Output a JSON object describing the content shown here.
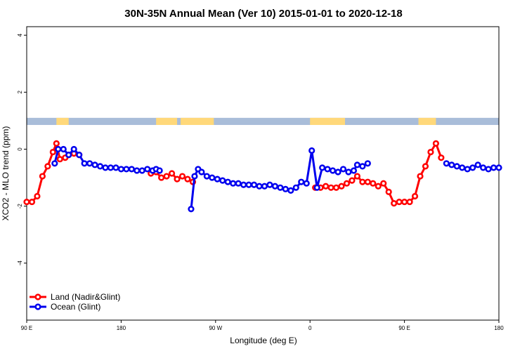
{
  "chart_data": {
    "type": "line",
    "title": "30N-35N Annual Mean (Ver 10)   2015-01-01 to 2020-12-18",
    "xlabel": "Longitude (deg E)",
    "ylabel": "XCO2 - MLO trend (ppm)",
    "xlim": [
      -90,
      180
    ],
    "ylim": [
      -6,
      4.3
    ],
    "x_ticks": [
      -90,
      -36,
      18,
      72,
      126,
      180
    ],
    "x_tick_labels": [
      "90 E",
      "180",
      "90 W",
      "0",
      "90 E",
      "180"
    ],
    "y_ticks": [
      4,
      2,
      0,
      -2,
      -4
    ],
    "y_tick_labels": [
      "4",
      "2",
      "0",
      "-2",
      "-4"
    ],
    "grid": false,
    "legend_position": "bottom-left",
    "colors": {
      "land": "#ff0000",
      "ocean": "#0000ee",
      "land_band": "#ffd87a",
      "ocean_band": "#a9bdd9"
    },
    "landmask_band": {
      "y_range": [
        0.85,
        1.1
      ],
      "land_x_ranges": [
        [
          -73,
          -66
        ],
        [
          -16,
          -4
        ],
        [
          -2,
          17
        ],
        [
          72,
          92
        ],
        [
          134,
          144
        ]
      ]
    },
    "series": [
      {
        "name": "Land (Nadir&Glint)",
        "color": "#ff0000",
        "x": [
          -90,
          -87,
          -84,
          -81,
          -78,
          -75,
          -73,
          -71,
          -68,
          -66,
          -63,
          -60,
          -19,
          -16,
          -13,
          -10,
          -7,
          -4,
          -1,
          2,
          5,
          75,
          78,
          81,
          84,
          87,
          90,
          93,
          96,
          99,
          102,
          105,
          108,
          111,
          114,
          117,
          120,
          123,
          126,
          129,
          132,
          135,
          138,
          141,
          144,
          147
        ],
        "y": [
          -1.85,
          -1.85,
          -1.65,
          -0.95,
          -0.6,
          -0.1,
          0.2,
          -0.35,
          -0.3,
          -0.2,
          -0.15,
          -0.2,
          -0.85,
          -0.8,
          -1.0,
          -0.95,
          -0.85,
          -1.05,
          -0.95,
          -1.05,
          -1.15,
          -1.35,
          -1.35,
          -1.3,
          -1.35,
          -1.35,
          -1.3,
          -1.2,
          -1.1,
          -0.95,
          -1.15,
          -1.15,
          -1.2,
          -1.3,
          -1.2,
          -1.5,
          -1.9,
          -1.85,
          -1.85,
          -1.85,
          -1.65,
          -0.95,
          -0.6,
          -0.1,
          0.2,
          -0.3
        ]
      },
      {
        "name": "Ocean (Glint)",
        "color": "#0000ee",
        "x": [
          -74,
          -72,
          -69,
          -66,
          -63,
          -60,
          -57,
          -54,
          -51,
          -48,
          -45,
          -42,
          -39,
          -36,
          -33,
          -30,
          -27,
          -24,
          -21,
          -18,
          -16,
          -14,
          4,
          6,
          8,
          10,
          13,
          16,
          19,
          22,
          25,
          28,
          31,
          34,
          37,
          40,
          43,
          46,
          49,
          52,
          55,
          58,
          61,
          64,
          67,
          70,
          73,
          76,
          79,
          82,
          85,
          88,
          91,
          94,
          97,
          99,
          102,
          105,
          150,
          153,
          156,
          159,
          162,
          165,
          168,
          171,
          174,
          177,
          180
        ],
        "y": [
          -0.5,
          0.0,
          0.0,
          -0.2,
          0.0,
          -0.2,
          -0.5,
          -0.5,
          -0.55,
          -0.6,
          -0.65,
          -0.65,
          -0.65,
          -0.7,
          -0.7,
          -0.7,
          -0.75,
          -0.75,
          -0.7,
          -0.75,
          -0.7,
          -0.75,
          -2.1,
          -0.95,
          -0.7,
          -0.8,
          -0.95,
          -1.0,
          -1.05,
          -1.1,
          -1.15,
          -1.2,
          -1.2,
          -1.25,
          -1.25,
          -1.25,
          -1.3,
          -1.3,
          -1.25,
          -1.3,
          -1.35,
          -1.4,
          -1.45,
          -1.35,
          -1.15,
          -1.2,
          -0.05,
          -1.35,
          -0.65,
          -0.7,
          -0.75,
          -0.8,
          -0.7,
          -0.8,
          -0.75,
          -0.55,
          -0.6,
          -0.5,
          -0.5,
          -0.55,
          -0.6,
          -0.65,
          -0.7,
          -0.65,
          -0.55,
          -0.65,
          -0.7,
          -0.65,
          -0.65
        ]
      }
    ]
  }
}
